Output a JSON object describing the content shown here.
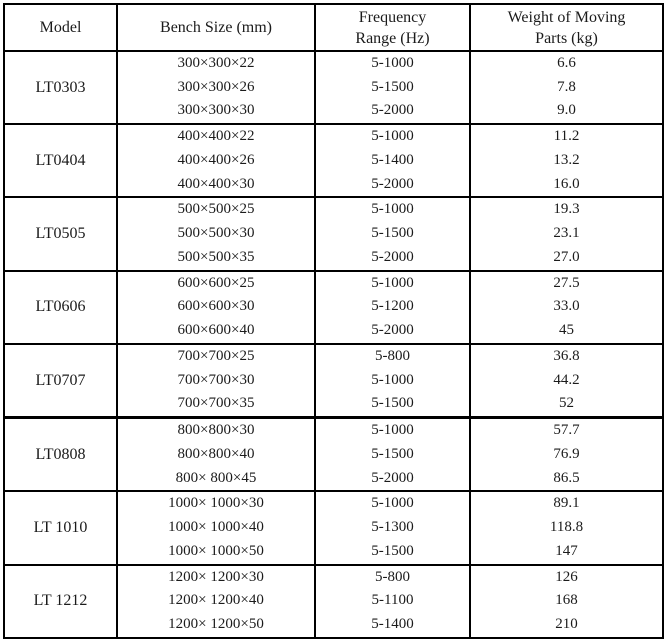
{
  "colors": {
    "background": "#ffffff",
    "border": "#000000",
    "text": "#1b1b1b"
  },
  "table": {
    "columns": [
      {
        "label": "Model"
      },
      {
        "label": "Bench Size (mm)"
      },
      {
        "label": "Frequency\nRange (Hz)"
      },
      {
        "label": "Weight of Moving\nParts (kg)"
      }
    ],
    "groups": [
      {
        "model": "LT0303",
        "rows": [
          {
            "size": "300×300×22",
            "freq": "5-1000",
            "weight": "6.6"
          },
          {
            "size": "300×300×26",
            "freq": "5-1500",
            "weight": "7.8"
          },
          {
            "size": "300×300×30",
            "freq": "5-2000",
            "weight": "9.0"
          }
        ]
      },
      {
        "model": "LT0404",
        "rows": [
          {
            "size": "400×400×22",
            "freq": "5-1000",
            "weight": "11.2"
          },
          {
            "size": "400×400×26",
            "freq": "5-1400",
            "weight": "13.2"
          },
          {
            "size": "400×400×30",
            "freq": "5-2000",
            "weight": "16.0"
          }
        ]
      },
      {
        "model": "LT0505",
        "rows": [
          {
            "size": "500×500×25",
            "freq": "5-1000",
            "weight": "19.3"
          },
          {
            "size": "500×500×30",
            "freq": "5-1500",
            "weight": "23.1"
          },
          {
            "size": "500×500×35",
            "freq": "5-2000",
            "weight": "27.0"
          }
        ]
      },
      {
        "model": "LT0606",
        "rows": [
          {
            "size": "600×600×25",
            "freq": "5-1000",
            "weight": "27.5"
          },
          {
            "size": "600×600×30",
            "freq": "5-1200",
            "weight": "33.0"
          },
          {
            "size": "600×600×40",
            "freq": "5-2000",
            "weight": "45"
          }
        ]
      },
      {
        "model": "LT0707",
        "rows": [
          {
            "size": "700×700×25",
            "freq": "5-800",
            "weight": "36.8"
          },
          {
            "size": "700×700×30",
            "freq": "5-1000",
            "weight": "44.2"
          },
          {
            "size": "700×700×35",
            "freq": "5-1500",
            "weight": "52"
          }
        ]
      },
      {
        "model": "LT0808",
        "separator": "thick",
        "rows": [
          {
            "size": "800×800×30",
            "freq": "5-1000",
            "weight": "57.7"
          },
          {
            "size": "800×800×40",
            "freq": "5-1500",
            "weight": "76.9"
          },
          {
            "size": "800× 800×45",
            "freq": "5-2000",
            "weight": "86.5"
          }
        ]
      },
      {
        "model": "LT 1010",
        "rows": [
          {
            "size": "1000× 1000×30",
            "freq": "5-1000",
            "weight": "89.1"
          },
          {
            "size": "1000× 1000×40",
            "freq": "5-1300",
            "weight": "118.8"
          },
          {
            "size": "1000× 1000×50",
            "freq": "5-1500",
            "weight": "147"
          }
        ]
      },
      {
        "model": "LT 1212",
        "rows": [
          {
            "size": "1200× 1200×30",
            "freq": "5-800",
            "weight": "126"
          },
          {
            "size": "1200× 1200×40",
            "freq": "5-1100",
            "weight": "168"
          },
          {
            "size": "1200× 1200×50",
            "freq": "5-1400",
            "weight": "210"
          }
        ]
      }
    ]
  }
}
